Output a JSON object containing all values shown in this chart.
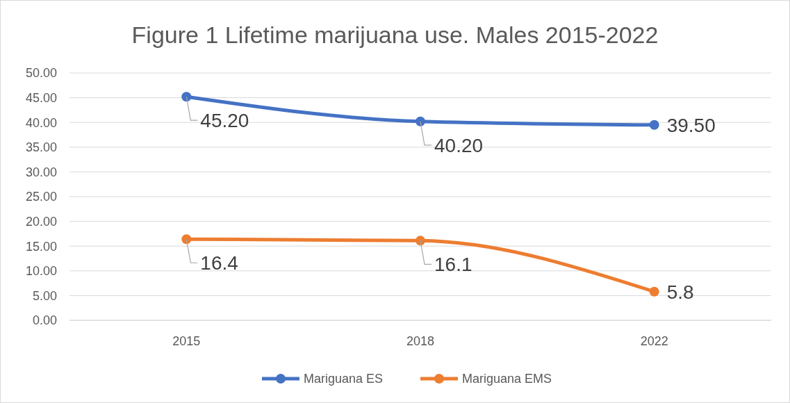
{
  "chart_data": {
    "type": "line",
    "title": "Figure 1 Lifetime marijuana use. Males 2015-2022",
    "categories": [
      "2015",
      "2018",
      "2022"
    ],
    "series": [
      {
        "name": "Mariguana ES",
        "color": "#4472c4",
        "values": [
          45.2,
          40.2,
          39.5
        ],
        "value_labels": [
          "45.20",
          "40.20",
          "39.50"
        ]
      },
      {
        "name": "Mariguana EMS",
        "color": "#ed7d31",
        "values": [
          16.4,
          16.1,
          5.8
        ],
        "value_labels": [
          "16.4",
          "16.1",
          "5.8"
        ]
      }
    ],
    "ylim": [
      0,
      50
    ],
    "yticks": [
      {
        "value": 0,
        "label": "0.00"
      },
      {
        "value": 5,
        "label": "5.00"
      },
      {
        "value": 10,
        "label": "10.00"
      },
      {
        "value": 15,
        "label": "15.00"
      },
      {
        "value": 20,
        "label": "20.00"
      },
      {
        "value": 25,
        "label": "25.00"
      },
      {
        "value": 30,
        "label": "30.00"
      },
      {
        "value": 35,
        "label": "35.00"
      },
      {
        "value": 40,
        "label": "40.00"
      },
      {
        "value": 45,
        "label": "45.00"
      },
      {
        "value": 50,
        "label": "50.00"
      }
    ],
    "grid": "y",
    "legend": "bottom",
    "marker": "circle",
    "line_style": "solid"
  }
}
